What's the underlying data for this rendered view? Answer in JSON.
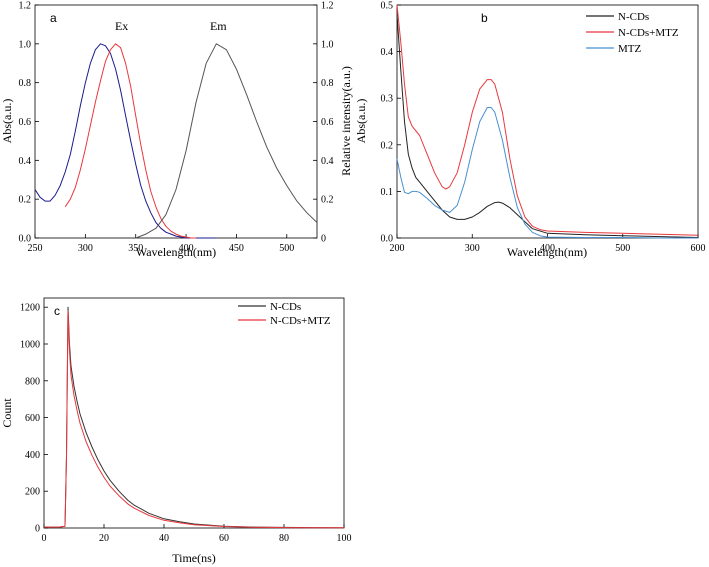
{
  "chart_data": [
    {
      "panel": "a",
      "type": "line",
      "xlabel": "Wavelength(nm)",
      "ylabel": "Abs(a.u.)",
      "y2label": "Relative intensity(a.u.)",
      "xlim": [
        250,
        530
      ],
      "ylim": [
        0,
        1.2
      ],
      "y2lim": [
        0,
        1.2
      ],
      "xticks": [
        250,
        300,
        350,
        400,
        450,
        500
      ],
      "yticks": [
        0.0,
        0.2,
        0.4,
        0.6,
        0.8,
        1.0,
        1.2
      ],
      "ytick_labels": [
        "0.0",
        "0.2",
        "0.4",
        "0.6",
        "0.8",
        "1.0",
        "1.2"
      ],
      "y2ticks": [
        0,
        0.2,
        0.4,
        0.6,
        0.8,
        1.0,
        1.2
      ],
      "y2tick_labels": [
        "0",
        "0.2",
        "0.4",
        "0.6",
        "0.8",
        "1.0",
        "1.2"
      ],
      "annotations": [
        {
          "text": "Ex",
          "x": 336,
          "y": 1.07
        },
        {
          "text": "Em",
          "x": 432,
          "y": 1.07
        }
      ],
      "series": [
        {
          "name": "Abs",
          "color": "#1a1a8c",
          "x": [
            250,
            255,
            260,
            265,
            270,
            275,
            280,
            285,
            290,
            295,
            300,
            305,
            310,
            315,
            320,
            325,
            330,
            335,
            340,
            345,
            350,
            355,
            360,
            365,
            370,
            375,
            380,
            385,
            390,
            395,
            400,
            410,
            420,
            430
          ],
          "y": [
            0.25,
            0.21,
            0.19,
            0.19,
            0.22,
            0.27,
            0.34,
            0.43,
            0.55,
            0.68,
            0.8,
            0.9,
            0.97,
            1.0,
            0.99,
            0.95,
            0.87,
            0.76,
            0.63,
            0.5,
            0.38,
            0.27,
            0.19,
            0.13,
            0.08,
            0.05,
            0.03,
            0.02,
            0.01,
            0.005,
            0.0,
            0.0,
            0.0,
            0.0
          ]
        },
        {
          "name": "Ex",
          "color": "#e8383d",
          "x": [
            280,
            285,
            290,
            295,
            300,
            305,
            310,
            315,
            320,
            325,
            330,
            335,
            340,
            345,
            350,
            355,
            360,
            365,
            370,
            375,
            380,
            385,
            390,
            395,
            400,
            405,
            410
          ],
          "y": [
            0.16,
            0.2,
            0.26,
            0.35,
            0.46,
            0.58,
            0.7,
            0.81,
            0.91,
            0.97,
            1.0,
            0.98,
            0.9,
            0.78,
            0.63,
            0.48,
            0.35,
            0.24,
            0.16,
            0.1,
            0.06,
            0.035,
            0.02,
            0.01,
            0.005,
            0.0,
            0.0
          ]
        },
        {
          "name": "Em",
          "color": "#555555",
          "x": [
            350,
            360,
            370,
            380,
            390,
            400,
            410,
            420,
            430,
            440,
            450,
            460,
            470,
            480,
            490,
            500,
            510,
            520,
            530
          ],
          "y": [
            0.0,
            0.02,
            0.05,
            0.12,
            0.25,
            0.45,
            0.7,
            0.9,
            1.0,
            0.97,
            0.87,
            0.74,
            0.6,
            0.47,
            0.36,
            0.27,
            0.19,
            0.13,
            0.08
          ]
        }
      ]
    },
    {
      "panel": "b",
      "type": "line",
      "xlabel": "Wavelength(nm)",
      "ylabel": "Abs(a.u.)",
      "xlim": [
        200,
        600
      ],
      "ylim": [
        0,
        0.5
      ],
      "xticks": [
        200,
        300,
        400,
        500,
        600
      ],
      "yticks": [
        0.0,
        0.1,
        0.2,
        0.3,
        0.4,
        0.5
      ],
      "ytick_labels": [
        "0.0",
        "0.1",
        "0.2",
        "0.3",
        "0.4",
        "0.5"
      ],
      "legend": "top-right",
      "series": [
        {
          "name": "N-CDs",
          "color": "#222222",
          "x": [
            200,
            205,
            210,
            215,
            220,
            225,
            230,
            240,
            250,
            260,
            270,
            280,
            290,
            300,
            310,
            320,
            330,
            335,
            340,
            350,
            360,
            370,
            380,
            400,
            450,
            500,
            550,
            600
          ],
          "y": [
            0.48,
            0.36,
            0.25,
            0.18,
            0.15,
            0.13,
            0.12,
            0.1,
            0.08,
            0.06,
            0.045,
            0.04,
            0.04,
            0.045,
            0.055,
            0.068,
            0.076,
            0.077,
            0.075,
            0.065,
            0.05,
            0.035,
            0.02,
            0.01,
            0.007,
            0.005,
            0.003,
            0.001
          ]
        },
        {
          "name": "N-CDs+MTZ",
          "color": "#e8383d",
          "x": [
            200,
            205,
            210,
            215,
            220,
            230,
            240,
            250,
            260,
            265,
            270,
            280,
            290,
            300,
            310,
            320,
            325,
            330,
            340,
            350,
            360,
            370,
            380,
            390,
            400,
            450,
            500,
            550,
            600
          ],
          "y": [
            0.5,
            0.42,
            0.33,
            0.26,
            0.24,
            0.22,
            0.18,
            0.14,
            0.11,
            0.105,
            0.11,
            0.14,
            0.2,
            0.27,
            0.32,
            0.34,
            0.34,
            0.33,
            0.27,
            0.17,
            0.09,
            0.045,
            0.025,
            0.018,
            0.015,
            0.012,
            0.01,
            0.008,
            0.006
          ]
        },
        {
          "name": "MTZ",
          "color": "#4a8fd0",
          "x": [
            200,
            205,
            210,
            215,
            220,
            225,
            230,
            240,
            250,
            260,
            270,
            280,
            290,
            300,
            310,
            320,
            325,
            330,
            340,
            350,
            360,
            370,
            380,
            390,
            400,
            450,
            500,
            550,
            600
          ],
          "y": [
            0.17,
            0.13,
            0.098,
            0.095,
            0.1,
            0.1,
            0.098,
            0.085,
            0.07,
            0.06,
            0.055,
            0.07,
            0.12,
            0.19,
            0.25,
            0.28,
            0.28,
            0.27,
            0.21,
            0.13,
            0.065,
            0.03,
            0.012,
            0.005,
            0.002,
            0.001,
            0.001,
            0.0,
            0.0
          ]
        }
      ]
    },
    {
      "panel": "c",
      "type": "line",
      "xlabel": "Time(ns)",
      "ylabel": "Count",
      "xlim": [
        0,
        100
      ],
      "ylim": [
        0,
        1250
      ],
      "xticks": [
        0,
        20,
        40,
        60,
        80,
        100
      ],
      "yticks": [
        0,
        200,
        400,
        600,
        800,
        1000,
        1200
      ],
      "ytick_labels": [
        "0",
        "200",
        "400",
        "600",
        "800",
        "1000",
        "1200"
      ],
      "legend": "top-right",
      "series": [
        {
          "name": "N-CDs",
          "color": "#333333",
          "x": [
            0,
            5,
            7,
            7.5,
            8,
            8.5,
            9,
            10,
            11,
            12,
            14,
            16,
            18,
            20,
            22,
            25,
            28,
            30,
            35,
            40,
            45,
            50,
            60,
            70,
            80,
            90,
            100
          ],
          "y": [
            5,
            5,
            10,
            400,
            1200,
            1000,
            880,
            770,
            690,
            620,
            520,
            440,
            370,
            310,
            260,
            200,
            150,
            125,
            80,
            50,
            35,
            22,
            10,
            5,
            3,
            2,
            1
          ]
        },
        {
          "name": "N-CDs+MTZ",
          "color": "#e8383d",
          "x": [
            0,
            5,
            7,
            7.5,
            8,
            8.5,
            9,
            10,
            11,
            12,
            14,
            16,
            18,
            20,
            22,
            25,
            28,
            30,
            35,
            40,
            45,
            50,
            60,
            70,
            80,
            90,
            100
          ],
          "y": [
            5,
            5,
            10,
            380,
            1180,
            960,
            830,
            720,
            640,
            570,
            470,
            395,
            330,
            275,
            228,
            175,
            130,
            108,
            68,
            42,
            28,
            18,
            8,
            4,
            2,
            1,
            1
          ]
        }
      ]
    }
  ],
  "colors": {
    "axis": "#000000",
    "background": "#ffffff"
  }
}
